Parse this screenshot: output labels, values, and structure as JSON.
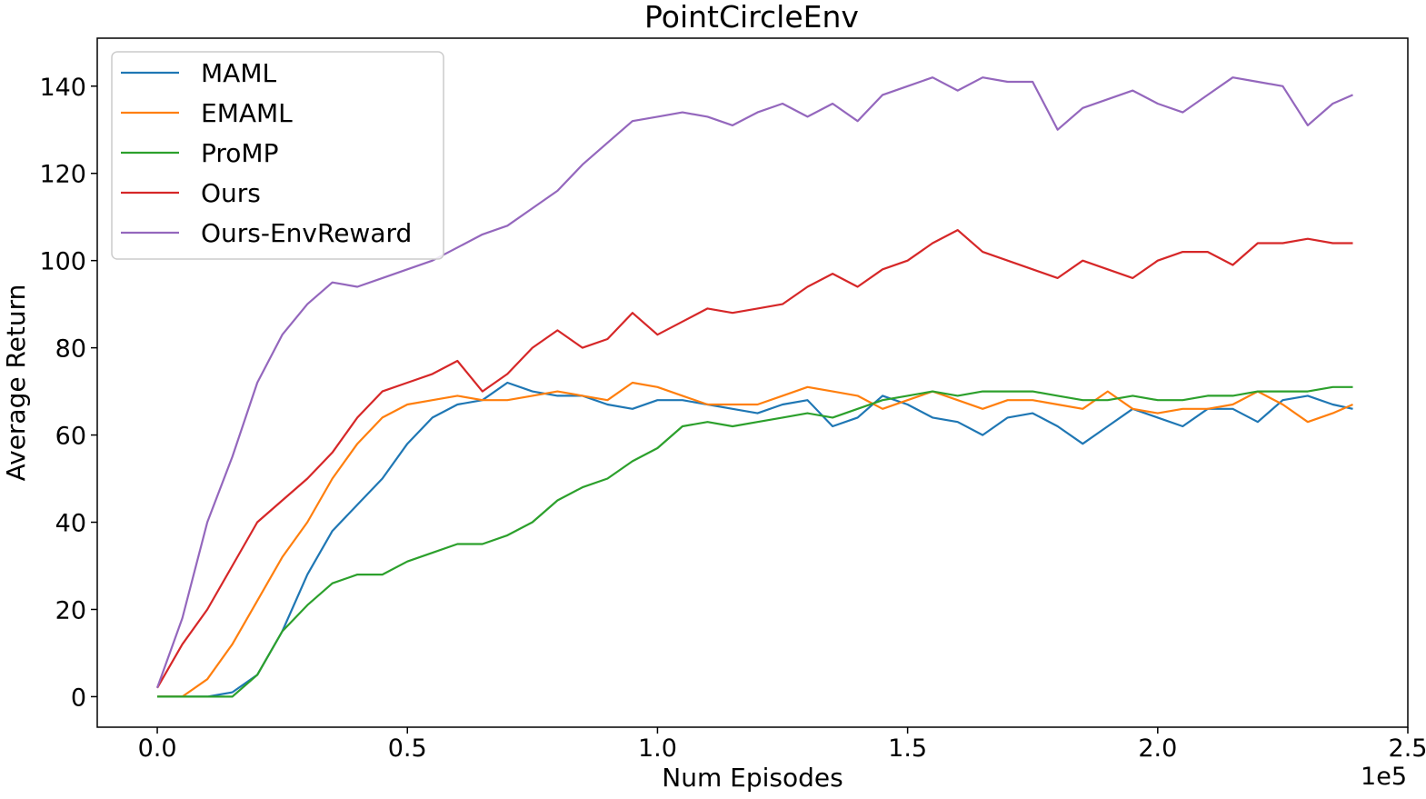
{
  "chart_data": {
    "type": "line",
    "title": "PointCircleEnv",
    "xlabel": "Num Episodes",
    "ylabel": "Average Return",
    "x_offset_label": "1e5",
    "xlim": [
      -0.12,
      2.5
    ],
    "ylim": [
      -7,
      151
    ],
    "x_ticks": [
      0.0,
      0.5,
      1.0,
      1.5,
      2.0,
      2.5
    ],
    "x_tick_labels": [
      "0.0",
      "0.5",
      "1.0",
      "1.5",
      "2.0",
      "2.5"
    ],
    "y_ticks": [
      0,
      20,
      40,
      60,
      80,
      100,
      120,
      140
    ],
    "y_tick_labels": [
      "0",
      "20",
      "40",
      "60",
      "80",
      "100",
      "120",
      "140"
    ],
    "grid": false,
    "legend_position": "upper-left",
    "x": [
      0.0,
      0.05,
      0.1,
      0.15,
      0.2,
      0.25,
      0.3,
      0.35,
      0.4,
      0.45,
      0.5,
      0.55,
      0.6,
      0.65,
      0.7,
      0.75,
      0.8,
      0.85,
      0.9,
      0.95,
      1.0,
      1.05,
      1.1,
      1.15,
      1.2,
      1.25,
      1.3,
      1.35,
      1.4,
      1.45,
      1.5,
      1.55,
      1.6,
      1.65,
      1.7,
      1.75,
      1.8,
      1.85,
      1.9,
      1.95,
      2.0,
      2.05,
      2.1,
      2.15,
      2.2,
      2.25,
      2.3,
      2.35,
      2.39
    ],
    "series": [
      {
        "name": "MAML",
        "color": "#1f77b4",
        "values": [
          0,
          0,
          0,
          1,
          5,
          15,
          28,
          38,
          44,
          50,
          58,
          64,
          67,
          68,
          72,
          70,
          69,
          69,
          67,
          66,
          68,
          68,
          67,
          66,
          65,
          67,
          68,
          62,
          64,
          69,
          67,
          64,
          63,
          60,
          64,
          65,
          62,
          58,
          62,
          66,
          64,
          62,
          66,
          66,
          63,
          68,
          69,
          67,
          66
        ]
      },
      {
        "name": "EMAML",
        "color": "#ff7f0e",
        "values": [
          0,
          0,
          4,
          12,
          22,
          32,
          40,
          50,
          58,
          64,
          67,
          68,
          69,
          68,
          68,
          69,
          70,
          69,
          68,
          72,
          71,
          69,
          67,
          67,
          67,
          69,
          71,
          70,
          69,
          66,
          68,
          70,
          68,
          66,
          68,
          68,
          67,
          66,
          70,
          66,
          65,
          66,
          66,
          67,
          70,
          67,
          63,
          65,
          67
        ]
      },
      {
        "name": "ProMP",
        "color": "#2ca02c",
        "values": [
          0,
          0,
          0,
          0,
          5,
          15,
          21,
          26,
          28,
          28,
          31,
          33,
          35,
          35,
          37,
          40,
          45,
          48,
          50,
          54,
          57,
          62,
          63,
          62,
          63,
          64,
          65,
          64,
          66,
          68,
          69,
          70,
          69,
          70,
          70,
          70,
          69,
          68,
          68,
          69,
          68,
          68,
          69,
          69,
          70,
          70,
          70,
          71,
          71
        ]
      },
      {
        "name": "Ours",
        "color": "#d62728",
        "values": [
          2,
          12,
          20,
          30,
          40,
          45,
          50,
          56,
          64,
          70,
          72,
          74,
          77,
          70,
          74,
          80,
          84,
          80,
          82,
          88,
          83,
          86,
          89,
          88,
          89,
          90,
          94,
          97,
          94,
          98,
          100,
          104,
          107,
          102,
          100,
          98,
          96,
          100,
          98,
          96,
          100,
          102,
          102,
          99,
          104,
          104,
          105,
          104,
          104
        ]
      },
      {
        "name": "Ours-EnvReward",
        "color": "#9467bd",
        "values": [
          2,
          18,
          40,
          55,
          72,
          83,
          90,
          95,
          94,
          96,
          98,
          100,
          103,
          106,
          108,
          112,
          116,
          122,
          127,
          132,
          133,
          134,
          133,
          131,
          134,
          136,
          133,
          136,
          132,
          138,
          140,
          142,
          139,
          142,
          141,
          141,
          130,
          135,
          137,
          139,
          136,
          134,
          138,
          142,
          141,
          140,
          131,
          136,
          138
        ]
      }
    ]
  }
}
